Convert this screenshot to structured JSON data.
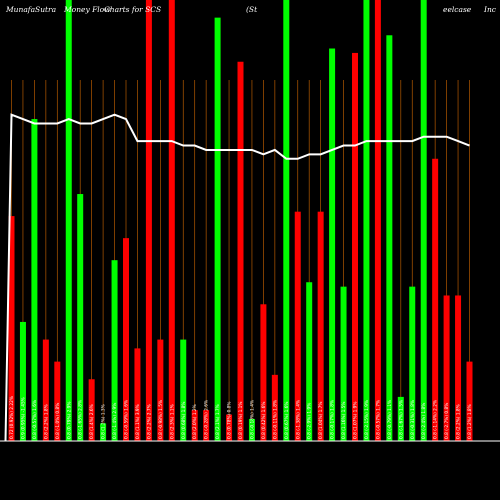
{
  "chart_data": {
    "type": "bar",
    "title_parts": [
      "MunafaSutra",
      "Money Flow",
      "Charts for SCS",
      "(St",
      "eelcase",
      "Inc"
    ],
    "colors": {
      "background": "#000000",
      "up": "#00ff00",
      "down": "#ff0000",
      "gridline": "#b35900",
      "line": "#ffffff",
      "baseline": "#ffffff"
    },
    "grid": true,
    "bars": [
      {
        "label": "0.72 (0.92%) 2.22%",
        "color": "red",
        "value": 51
      },
      {
        "label": "0.9 (0.95%) -1.45%",
        "color": "green",
        "value": 27
      },
      {
        "label": "0.8 (-0.57%) 1.6%",
        "color": "green",
        "value": 73
      },
      {
        "label": "0.8 (2.2%) 1.8%",
        "color": "red",
        "value": 23
      },
      {
        "label": "0.8 (-1.0%) 0.8%",
        "color": "red",
        "value": 18
      },
      {
        "label": "0.8 (0.79%) 2.9%",
        "color": "green",
        "value": 100
      },
      {
        "label": "0.8 (-1.65%) 2.8%",
        "color": "green",
        "value": 56
      },
      {
        "label": "0.8 (1.4%) 2.6%",
        "color": "red",
        "value": 14
      },
      {
        "label": "0.8 (1.2%) 1.3%",
        "color": "green",
        "value": 4
      },
      {
        "label": "0.8 (-1.4%) 2.9%",
        "color": "green",
        "value": 41
      },
      {
        "label": "0.8 (-0.59%) 1.6%",
        "color": "red",
        "value": 46
      },
      {
        "label": "0.8 (1.1%) 3.9%",
        "color": "red",
        "value": 21
      },
      {
        "label": "0.8 (2.2%) 2.7%",
        "color": "red",
        "value": 100
      },
      {
        "label": "0.8 (-0.98%) 1.5%",
        "color": "red",
        "value": 23
      },
      {
        "label": "0.8 (2.3%) 1.1%",
        "color": "red",
        "value": 100
      },
      {
        "label": "0.8 (0.68%) 1.8%",
        "color": "green",
        "value": 23
      },
      {
        "label": "0.8 (2.0%) 1.2%",
        "color": "red",
        "value": 7
      },
      {
        "label": "0.8 (-0.28%) 2.6%",
        "color": "red",
        "value": 7
      },
      {
        "label": "0.8 (2.1%) 1.7%",
        "color": "green",
        "value": 96
      },
      {
        "label": "0.8 (0.78%) 0.8%",
        "color": "red",
        "value": 6
      },
      {
        "label": "0.8 (0.19%) 1.1%",
        "color": "red",
        "value": 86
      },
      {
        "label": "0.8 (-0.18%) 1.4%",
        "color": "green",
        "value": 5
      },
      {
        "label": "0.8 (0.42%) 1.6%",
        "color": "red",
        "value": 31
      },
      {
        "label": "0.8 (-0.11%) 1.8%",
        "color": "red",
        "value": 15
      },
      {
        "label": "0.8 (0.67%) 1.6%",
        "color": "green",
        "value": 100
      },
      {
        "label": "0.8 (-1.38%) 1.4%",
        "color": "red",
        "value": 52
      },
      {
        "label": "0.8 (-2.9%) 1.9%",
        "color": "green",
        "value": 36
      },
      {
        "label": "0.8 (1.04%) 1.7%",
        "color": "red",
        "value": 52
      },
      {
        "label": "0.8 (-0.17%) 1.8%",
        "color": "green",
        "value": 89
      },
      {
        "label": "0.8 (1.16%) 1.5%",
        "color": "green",
        "value": 35
      },
      {
        "label": "0.8 (1.07%) 1.9%",
        "color": "red",
        "value": 88
      },
      {
        "label": "0.8 (-2.15%) 1.9%",
        "color": "green",
        "value": 100
      },
      {
        "label": "0.8 (-0.57%) 1.7%",
        "color": "red",
        "value": 100
      },
      {
        "label": "0.8 (-0.79%) 1.1%",
        "color": "green",
        "value": 92
      },
      {
        "label": "0.8 (-1.67%) 1.5%",
        "color": "green",
        "value": 10
      },
      {
        "label": "0.8 (-0.31%) 1.8%",
        "color": "green",
        "value": 35
      },
      {
        "label": "0.8 (-2.4%) 1.8%",
        "color": "green",
        "value": 100
      },
      {
        "label": "0.8 (-1.14%) 2.2%",
        "color": "red",
        "value": 64
      },
      {
        "label": "0.8 (-2.7%) 0.8%",
        "color": "red",
        "value": 33
      },
      {
        "label": "0.8 (2.2%) 1.8%",
        "color": "red",
        "value": 33
      },
      {
        "label": "0.8 (1.2%) 1.8%",
        "color": "red",
        "value": 18
      }
    ],
    "line": [
      74,
      73,
      72,
      72,
      72,
      73,
      72,
      72,
      73,
      74,
      73,
      68,
      68,
      68,
      68,
      67,
      67,
      66,
      66,
      66,
      66,
      66,
      65,
      66,
      64,
      64,
      65,
      65,
      66,
      67,
      67,
      68,
      68,
      68,
      68,
      68,
      69,
      69,
      69,
      68,
      67
    ]
  }
}
